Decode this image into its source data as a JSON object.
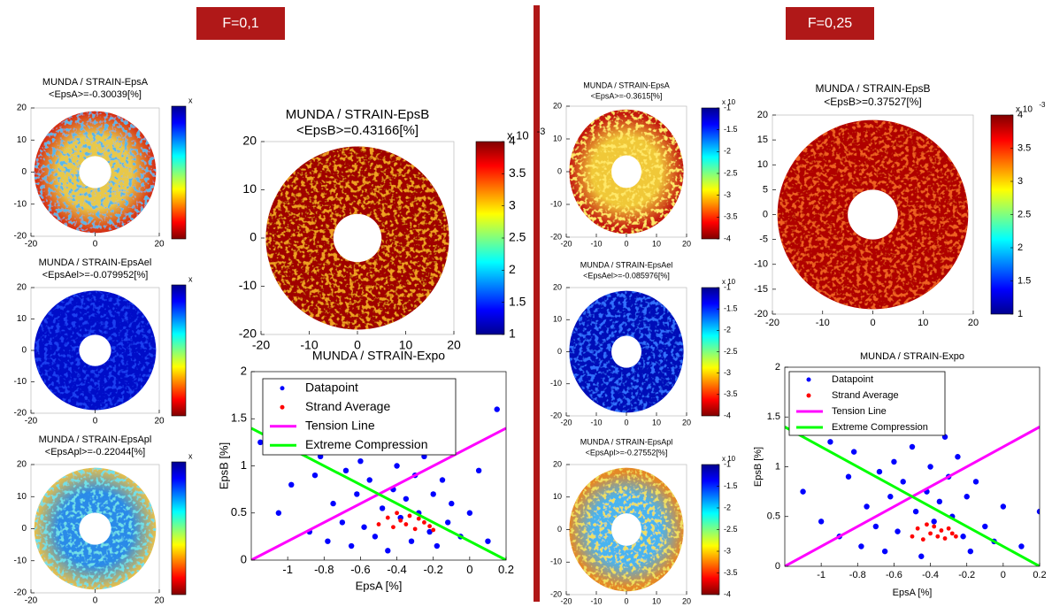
{
  "headers": [
    "F=0,1",
    "F=0,25"
  ],
  "chart_data": [
    {
      "type": "image",
      "title": "MUNDA / STRAIN-EpsA",
      "subtitle": "<EpsA>=-0.30039[%]",
      "xlim": [
        -20,
        20
      ],
      "ylim": [
        -20,
        20
      ],
      "xticks": [
        -20,
        0,
        20
      ],
      "yticks": [
        -20,
        -10,
        0,
        10,
        20
      ],
      "colorbar_label": "x",
      "colormap": "jet-reversed",
      "colors": [
        "#e8c848",
        "#d42a10",
        "#58b8e8"
      ]
    },
    {
      "type": "image",
      "title": "MUNDA / STRAIN-EpsAel",
      "subtitle": "<EpsAel>=-0.079952[%]",
      "xlim": [
        -20,
        20
      ],
      "ylim": [
        -20,
        20
      ],
      "xticks": [
        -20,
        0,
        20
      ],
      "yticks": [
        -20,
        -10,
        0,
        10,
        20
      ],
      "colorbar_label": "x",
      "colormap": "jet-reversed",
      "colors": [
        "#0010c8",
        "#0010c8",
        "#1a40f0"
      ]
    },
    {
      "type": "image",
      "title": "MUNDA / STRAIN-EpsApl",
      "subtitle": "<EpsApl>=-0.22044[%]",
      "xlim": [
        -20,
        20
      ],
      "ylim": [
        -20,
        20
      ],
      "xticks": [
        -20,
        0,
        20
      ],
      "yticks": [
        -20,
        -10,
        0,
        10,
        20
      ],
      "colorbar_label": "x",
      "colormap": "jet-reversed",
      "colors": [
        "#2a8ae8",
        "#e8c048",
        "#70e0e8"
      ]
    },
    {
      "type": "image",
      "title": "MUNDA / STRAIN-EpsB",
      "subtitle": "<EpsB>=0.43166[%]",
      "xlim": [
        -20,
        20
      ],
      "ylim": [
        -20,
        20
      ],
      "xticks": [
        -20,
        -10,
        0,
        10,
        20
      ],
      "yticks": [
        -20,
        -10,
        0,
        10,
        20
      ],
      "clim": [
        1,
        4
      ],
      "cticks": [
        1,
        1.5,
        2,
        2.5,
        3,
        3.5,
        4
      ],
      "colorbar_label": "x 10",
      "colorbar_exponent": "-3",
      "colormap": "jet",
      "colors": [
        "#a00000",
        "#a00000",
        "#f0a020"
      ]
    },
    {
      "type": "scatter",
      "title": "MUNDA / STRAIN-Expo",
      "x_label": "EpsA [%]",
      "y_label": "EpsB [%]",
      "xlim": [
        -1.2,
        0.2
      ],
      "ylim": [
        0,
        2
      ],
      "xticks": [
        -1,
        -0.8,
        -0.6,
        -0.4,
        -0.2,
        0,
        0.2
      ],
      "yticks": [
        0,
        0.5,
        1,
        1.5,
        2
      ],
      "series": [
        {
          "name": "Datapoint",
          "color": "#0000ff",
          "style": "markers",
          "x": [
            -1.15,
            -1.05,
            -0.98,
            -0.92,
            -0.88,
            -0.85,
            -0.82,
            -0.78,
            -0.75,
            -0.72,
            -0.7,
            -0.68,
            -0.65,
            -0.62,
            -0.6,
            -0.58,
            -0.55,
            -0.52,
            -0.5,
            -0.48,
            -0.45,
            -0.42,
            -0.4,
            -0.38,
            -0.35,
            -0.32,
            -0.3,
            -0.28,
            -0.25,
            -0.22,
            -0.2,
            -0.18,
            -0.15,
            -0.12,
            -0.1,
            -0.05,
            0,
            0.05,
            0.1,
            0.15
          ],
          "values": [
            1.25,
            0.5,
            0.8,
            1.45,
            0.3,
            0.9,
            1.1,
            0.2,
            0.6,
            1.3,
            0.4,
            0.95,
            0.15,
            0.7,
            1.05,
            0.35,
            0.85,
            0.25,
            1.2,
            0.55,
            0.1,
            0.75,
            1.0,
            0.45,
            0.65,
            0.2,
            0.9,
            0.5,
            1.1,
            0.3,
            0.7,
            0.15,
            0.85,
            0.4,
            0.6,
            0.25,
            0.5,
            0.95,
            0.2,
            1.6
          ]
        },
        {
          "name": "Strand Average",
          "color": "#ff0000",
          "style": "markers",
          "x": [
            -0.5,
            -0.45,
            -0.42,
            -0.4,
            -0.38,
            -0.35,
            -0.33,
            -0.3,
            -0.28,
            -0.25,
            -0.22,
            -0.2
          ],
          "values": [
            0.38,
            0.45,
            0.35,
            0.5,
            0.42,
            0.38,
            0.47,
            0.33,
            0.44,
            0.4,
            0.36,
            0.32
          ]
        },
        {
          "name": "Tension Line",
          "color": "#ff00ff",
          "style": "line",
          "x": [
            -1.2,
            0.2
          ],
          "values": [
            0,
            1.4
          ]
        },
        {
          "name": "Extreme Compression",
          "color": "#00ff00",
          "style": "line",
          "x": [
            -1.2,
            0.2
          ],
          "values": [
            1.4,
            0
          ]
        }
      ]
    },
    {
      "type": "image",
      "title": "MUNDA / STRAIN-EpsA",
      "subtitle": "<EpsA>=-0.3615[%]",
      "xlim": [
        -20,
        20
      ],
      "ylim": [
        -20,
        20
      ],
      "xticks": [
        -20,
        -10,
        0,
        10,
        20
      ],
      "yticks": [
        -20,
        -10,
        0,
        10,
        20
      ],
      "clim": [
        -4,
        -1
      ],
      "cticks": [
        -4,
        -3.5,
        -3,
        -2.5,
        -2,
        -1.5,
        -1
      ],
      "colorbar_label": "x 10",
      "colormap": "jet-reversed",
      "colors": [
        "#f0c838",
        "#c41810",
        "#ffe868"
      ]
    },
    {
      "type": "image",
      "title": "MUNDA / STRAIN-EpsAel",
      "subtitle": "<EpsAel>=-0.085976[%]",
      "xlim": [
        -20,
        20
      ],
      "ylim": [
        -20,
        20
      ],
      "xticks": [
        -20,
        -10,
        0,
        10,
        20
      ],
      "yticks": [
        -20,
        -10,
        0,
        10,
        20
      ],
      "clim": [
        -4,
        -1
      ],
      "cticks": [
        -4,
        -3.5,
        -3,
        -2.5,
        -2,
        -1.5,
        -1
      ],
      "colorbar_label": "x 10",
      "colormap": "jet-reversed",
      "colors": [
        "#0010b8",
        "#0010b8",
        "#3070ff"
      ]
    },
    {
      "type": "image",
      "title": "MUNDA / STRAIN-EpsApl",
      "subtitle": "<EpsApl>=-0.27552[%]",
      "xlim": [
        -20,
        20
      ],
      "ylim": [
        -20,
        20
      ],
      "xticks": [
        -20,
        -10,
        0,
        10,
        20
      ],
      "yticks": [
        -20,
        -10,
        0,
        10,
        20
      ],
      "clim": [
        -4,
        -1
      ],
      "cticks": [
        -4,
        -3.5,
        -3,
        -2.5,
        -2,
        -1.5,
        -1
      ],
      "colorbar_label": "x 10",
      "colormap": "jet-reversed",
      "colors": [
        "#48b4f0",
        "#e48828",
        "#f0e060"
      ]
    },
    {
      "type": "image",
      "title": "MUNDA / STRAIN-EpsB",
      "subtitle": "<EpsB>=0.37527[%]",
      "xlim": [
        -20,
        20
      ],
      "ylim": [
        -20,
        20
      ],
      "xticks": [
        -20,
        -10,
        0,
        10,
        20
      ],
      "yticks": [
        -20,
        -15,
        -10,
        -5,
        0,
        5,
        10,
        15,
        20
      ],
      "clim": [
        1,
        4
      ],
      "cticks": [
        1,
        1.5,
        2,
        2.5,
        3,
        3.5,
        4
      ],
      "colorbar_label": "x 10",
      "colorbar_exponent": "-3",
      "colormap": "jet",
      "colors": [
        "#b00000",
        "#b00000",
        "#f06020"
      ]
    },
    {
      "type": "scatter",
      "title": "MUNDA / STRAIN-Expo",
      "x_label": "EpsA [%]",
      "y_label": "EpsB [%]",
      "xlim": [
        -1.2,
        0.2
      ],
      "ylim": [
        0,
        2
      ],
      "xticks": [
        -1,
        -0.8,
        -0.6,
        -0.4,
        -0.2,
        0,
        0.2
      ],
      "yticks": [
        0,
        0.5,
        1,
        1.5,
        2
      ],
      "series": [
        {
          "name": "Datapoint",
          "color": "#0000ff",
          "style": "markers",
          "x": [
            -1.1,
            -1.0,
            -0.95,
            -0.9,
            -0.85,
            -0.82,
            -0.78,
            -0.75,
            -0.72,
            -0.7,
            -0.68,
            -0.65,
            -0.62,
            -0.6,
            -0.58,
            -0.55,
            -0.52,
            -0.5,
            -0.48,
            -0.45,
            -0.42,
            -0.4,
            -0.38,
            -0.35,
            -0.32,
            -0.3,
            -0.28,
            -0.25,
            -0.22,
            -0.2,
            -0.18,
            -0.15,
            -0.1,
            -0.05,
            0.0,
            0.1,
            0.2
          ],
          "values": [
            0.75,
            0.45,
            1.25,
            0.3,
            0.9,
            1.15,
            0.2,
            0.6,
            1.35,
            0.4,
            0.95,
            0.15,
            0.7,
            1.05,
            0.35,
            0.85,
            1.5,
            1.2,
            0.55,
            0.1,
            0.75,
            1.0,
            0.45,
            0.65,
            1.3,
            0.9,
            0.5,
            1.1,
            0.3,
            0.7,
            0.15,
            0.85,
            0.4,
            0.25,
            0.6,
            0.2,
            0.55
          ]
        },
        {
          "name": "Strand Average",
          "color": "#ff0000",
          "style": "markers",
          "x": [
            -0.5,
            -0.47,
            -0.44,
            -0.42,
            -0.4,
            -0.38,
            -0.36,
            -0.34,
            -0.32,
            -0.3,
            -0.28,
            -0.26
          ],
          "values": [
            0.3,
            0.38,
            0.27,
            0.42,
            0.33,
            0.4,
            0.3,
            0.36,
            0.28,
            0.38,
            0.33,
            0.3
          ]
        },
        {
          "name": "Tension Line",
          "color": "#ff00ff",
          "style": "line",
          "x": [
            -1.2,
            0.2
          ],
          "values": [
            0,
            1.4
          ]
        },
        {
          "name": "Extreme Compression",
          "color": "#00ff00",
          "style": "line",
          "x": [
            -1.2,
            0.2
          ],
          "values": [
            1.4,
            0
          ]
        }
      ]
    }
  ]
}
